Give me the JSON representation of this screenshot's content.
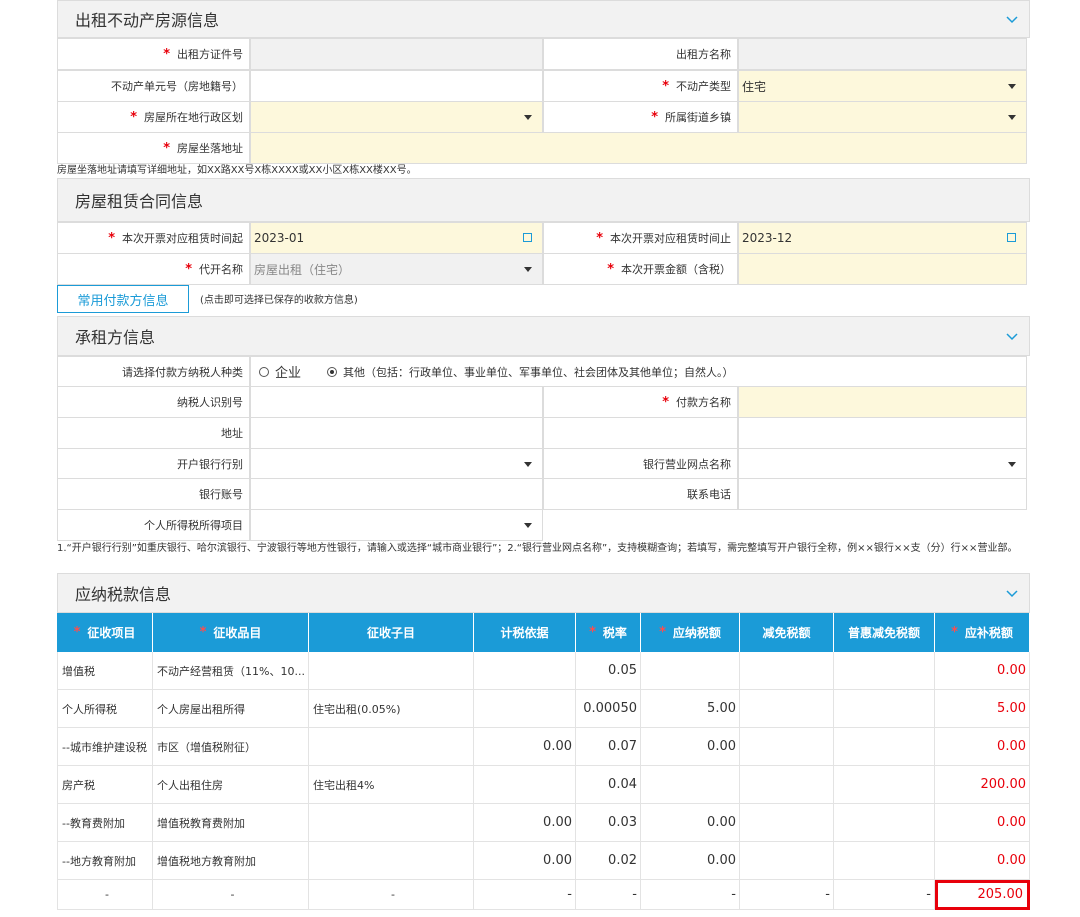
{
  "property": {
    "title": "出租不动产房源信息",
    "collapsible": true,
    "rows": [
      [
        {
          "label": "出租方证件号",
          "required": true,
          "disabled": true
        },
        {
          "label": "出租方名称",
          "disabled": true
        }
      ],
      [
        {
          "label": "不动产单元号（房地籍号）"
        },
        {
          "label": "不动产类型",
          "required": true,
          "value": "住宅",
          "select": true
        }
      ],
      [
        {
          "label": "房屋所在地行政区划",
          "required": true,
          "select": true
        },
        {
          "label": "所属街道乡镇",
          "required": true,
          "select": true
        }
      ],
      [
        {
          "label": "房屋坐落地址",
          "required": true,
          "span": true
        }
      ]
    ],
    "note": "房屋坐落地址请填写详细地址，如XX路XX号X栋XXXX或XX小区X栋XX楼XX号。"
  },
  "contract": {
    "title": "房屋租赁合同信息",
    "collapsible": false,
    "rows": [
      [
        {
          "label": "本次开票对应租赁时间起",
          "required": true,
          "value": "2023-01",
          "calendar": true
        },
        {
          "label": "本次开票对应租赁时间止",
          "required": true,
          "value": "2023-12",
          "calendar": true
        }
      ],
      [
        {
          "label": "代开名称",
          "required": true,
          "disabled": true,
          "value": "房屋出租（住宅）",
          "select": true
        },
        {
          "label": "本次开票金额（含税）",
          "required": true
        }
      ]
    ]
  },
  "payer_button": {
    "label": "常用付款方信息",
    "hint": "(点击即可选择已保存的收款方信息)"
  },
  "lessee": {
    "title": "承租方信息",
    "collapsible": true,
    "payer_type": {
      "label": "请选择付款方纳税人种类",
      "options": [
        "企业",
        "其他（包括：行政单位、事业单位、军事单位、社会团体及其他单位；自然人。）"
      ],
      "selected": 1
    },
    "rows": [
      [
        {
          "label": "纳税人识别号"
        },
        {
          "label": "付款方名称",
          "required": true
        }
      ],
      [
        {
          "label": "地址"
        },
        {
          "label": null
        }
      ],
      [
        {
          "label": "开户银行行别",
          "select": true
        },
        {
          "label": "银行营业网点名称",
          "select": true
        }
      ],
      [
        {
          "label": "银行账号"
        },
        {
          "label": "联系电话"
        }
      ],
      [
        {
          "label": "个人所得税所得项目",
          "select": true
        }
      ]
    ],
    "note": "1.“开户银行行别”如重庆银行、哈尔滨银行、宁波银行等地方性银行，请输入或选择“城市商业银行”；2.“银行营业网点名称”，支持模糊查询；若填写，需完整填写开户银行全称，例××银行××支（分）行××营业部。"
  },
  "tax": {
    "title": "应纳税款信息",
    "collapsible": true,
    "due_color": "#e8000b",
    "columns": [
      {
        "label": "征收项目",
        "required": true
      },
      {
        "label": "征收品目",
        "required": true
      },
      {
        "label": "征收子目"
      },
      {
        "label": "计税依据"
      },
      {
        "label": "税率",
        "required": true
      },
      {
        "label": "应纳税额",
        "required": true
      },
      {
        "label": "减免税额"
      },
      {
        "label": "普惠减免税额"
      },
      {
        "label": "应补税额",
        "required": true
      }
    ],
    "rows": [
      [
        "增值税",
        "不动产经营租赁（11%、10...",
        null,
        null,
        "0.05",
        null,
        null,
        null,
        "0.00"
      ],
      [
        "个人所得税",
        "个人房屋出租所得",
        "住宅出租(0.05%)",
        null,
        "0.00050",
        "5.00",
        null,
        null,
        "5.00"
      ],
      [
        "--城市维护建设税",
        "市区（增值税附征）",
        null,
        "0.00",
        "0.07",
        "0.00",
        null,
        null,
        "0.00"
      ],
      [
        "房产税",
        "个人出租住房",
        "住宅出租4%",
        null,
        "0.04",
        null,
        null,
        null,
        "200.00"
      ],
      [
        "--教育费附加",
        "增值税教育费附加",
        null,
        "0.00",
        "0.03",
        "0.00",
        null,
        null,
        "0.00"
      ],
      [
        "--地方教育附加",
        "增值税地方教育附加",
        null,
        "0.00",
        "0.02",
        "0.00",
        null,
        null,
        "0.00"
      ],
      [
        "-",
        "-",
        "-",
        "-",
        "-",
        "-",
        "-",
        "-",
        "205.00"
      ]
    ],
    "highlighted_cell": [
      6,
      8
    ]
  }
}
